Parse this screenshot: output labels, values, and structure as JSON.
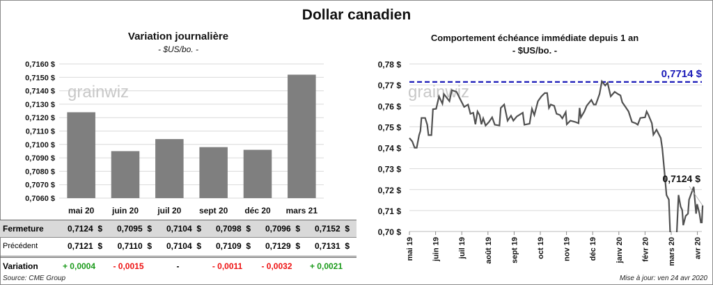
{
  "title": "Dollar canadien",
  "chart_data": [
    {
      "type": "bar",
      "title": "Variation  journalière",
      "subtitle": "- $US/bo. -",
      "categories": [
        "mai 20",
        "juin 20",
        "juil 20",
        "sept 20",
        "déc 20",
        "mars 21"
      ],
      "values": [
        0.7124,
        0.7095,
        0.7104,
        0.7098,
        0.7096,
        0.7152
      ],
      "ylim": [
        0.706,
        0.716
      ],
      "yticks": [
        "0,7060 $",
        "0,7070 $",
        "0,7080 $",
        "0,7090 $",
        "0,7100 $",
        "0,7110 $",
        "0,7120 $",
        "0,7130 $",
        "0,7140 $",
        "0,7150 $",
        "0,7160 $"
      ],
      "bar_color": "#7f7f7f",
      "grid": true
    },
    {
      "type": "line",
      "title": "Comportement échéance immédiate depuis 1 an",
      "subtitle": "- $US/bo. -",
      "xticks": [
        "mai 19",
        "juin 19",
        "juil 19",
        "août 19",
        "sept 19",
        "oct 19",
        "nov 19",
        "déc 19",
        "janv 20",
        "févr 20",
        "mars 20",
        "avr 20"
      ],
      "yticks": [
        "0,70 $",
        "0,71 $",
        "0,72 $",
        "0,73 $",
        "0,74 $",
        "0,75 $",
        "0,76 $",
        "0,77 $",
        "0,78 $"
      ],
      "ylim": [
        0.7,
        0.78
      ],
      "x_unit": "months since mai 19",
      "x": [
        0,
        0.11,
        0.2,
        0.28,
        0.37,
        0.42,
        0.46,
        0.6,
        0.68,
        0.73,
        0.84,
        0.9,
        1.02,
        1.13,
        1.26,
        1.32,
        1.53,
        1.62,
        1.8,
        1.93,
        2.09,
        2.24,
        2.33,
        2.44,
        2.52,
        2.6,
        2.68,
        2.75,
        2.82,
        2.91,
        3.04,
        3.16,
        3.26,
        3.44,
        3.49,
        3.62,
        3.75,
        3.88,
        3.97,
        4.1,
        4.33,
        4.39,
        4.59,
        4.68,
        4.77,
        4.91,
        5.04,
        5.17,
        5.26,
        5.33,
        5.4,
        5.53,
        5.62,
        5.75,
        5.84,
        5.97,
        6.01,
        6.15,
        6.33,
        6.46,
        6.5,
        6.55,
        6.68,
        6.77,
        6.95,
        7.04,
        7.12,
        7.26,
        7.35,
        7.48,
        7.57,
        7.69,
        7.84,
        7.97,
        8.06,
        8.13,
        8.28,
        8.37,
        8.5,
        8.64,
        8.72,
        8.82,
        9.0,
        9.06,
        9.13,
        9.26,
        9.32,
        9.44,
        9.6,
        9.66,
        9.75,
        9.82,
        9.91,
        9.97,
        10.2,
        10.28,
        10.36,
        10.42,
        10.46,
        10.55,
        10.64,
        10.68,
        10.86,
        10.95,
        10.99,
        11.08,
        11.13,
        11.17,
        11.2
      ],
      "y": [
        0.7446,
        0.743,
        0.74,
        0.74,
        0.746,
        0.748,
        0.7542,
        0.7542,
        0.751,
        0.746,
        0.746,
        0.7584,
        0.7586,
        0.7645,
        0.761,
        0.7656,
        0.7622,
        0.7675,
        0.7667,
        0.7634,
        0.7595,
        0.7606,
        0.7562,
        0.7567,
        0.7512,
        0.7573,
        0.7556,
        0.7512,
        0.754,
        0.7506,
        0.7523,
        0.7545,
        0.751,
        0.7506,
        0.759,
        0.7606,
        0.7529,
        0.7553,
        0.7529,
        0.7549,
        0.7567,
        0.751,
        0.7515,
        0.7586,
        0.7556,
        0.7622,
        0.7645,
        0.7661,
        0.7661,
        0.759,
        0.7606,
        0.76,
        0.7562,
        0.7556,
        0.754,
        0.757,
        0.7512,
        0.7529,
        0.7523,
        0.7517,
        0.759,
        0.7545,
        0.7573,
        0.76,
        0.7628,
        0.7606,
        0.7606,
        0.7656,
        0.7717,
        0.7697,
        0.771,
        0.7645,
        0.7667,
        0.7656,
        0.765,
        0.7617,
        0.759,
        0.7573,
        0.7523,
        0.7517,
        0.751,
        0.7542,
        0.7545,
        0.7573,
        0.7556,
        0.7517,
        0.7462,
        0.7486,
        0.7446,
        0.7396,
        0.7274,
        0.7174,
        0.7152,
        0.696,
        0.696,
        0.7174,
        0.7119,
        0.7102,
        0.703,
        0.7074,
        0.7085,
        0.7152,
        0.7213,
        0.7085,
        0.713,
        0.7085,
        0.7043,
        0.7043,
        0.7124
      ],
      "line_color": "#505050",
      "high_line": {
        "value": 0.7714,
        "label": "0,7714 $",
        "color": "#1a1ab8"
      },
      "last_label": "0,7124 $",
      "grid": true
    }
  ],
  "table": {
    "rows": [
      {
        "label": "Fermeture",
        "values": [
          "0,7124  $",
          "0,7095  $",
          "0,7104  $",
          "0,7098  $",
          "0,7096  $",
          "0,7152  $"
        ]
      },
      {
        "label": "Précédent",
        "values": [
          "0,7121  $",
          "0,7110  $",
          "0,7104  $",
          "0,7109  $",
          "0,7129  $",
          "0,7131  $"
        ]
      },
      {
        "label": "Variation",
        "values": [
          "+ 0,0004",
          "- 0,0015",
          "-",
          "- 0,0011",
          "- 0,0032",
          "+ 0,0021"
        ]
      }
    ]
  },
  "watermark": "grainwiz",
  "source": "Source: CME Group",
  "updated": "Mise à jour: ven 24 avr 2020"
}
